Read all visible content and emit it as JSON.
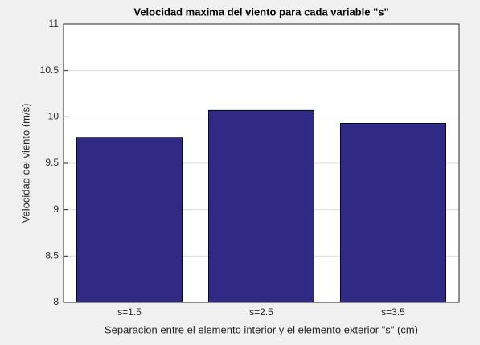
{
  "chart_data": {
    "type": "bar",
    "title": "Velocidad maxima del viento para cada variable \"s\"",
    "x_label": "Separacion entre el elemento interior y el elemento exterior \"s\" (cm)",
    "y_label": "Velocidad del viento (m/s)",
    "categories": [
      "s=1.5",
      "s=2.5",
      "s=3.5"
    ],
    "values": [
      9.78,
      10.07,
      9.93
    ],
    "color": "#312a84",
    "ylim": [
      8,
      11
    ],
    "yticks": [
      8,
      8.5,
      9,
      9.5,
      10,
      10.5,
      11
    ],
    "grid": true
  }
}
